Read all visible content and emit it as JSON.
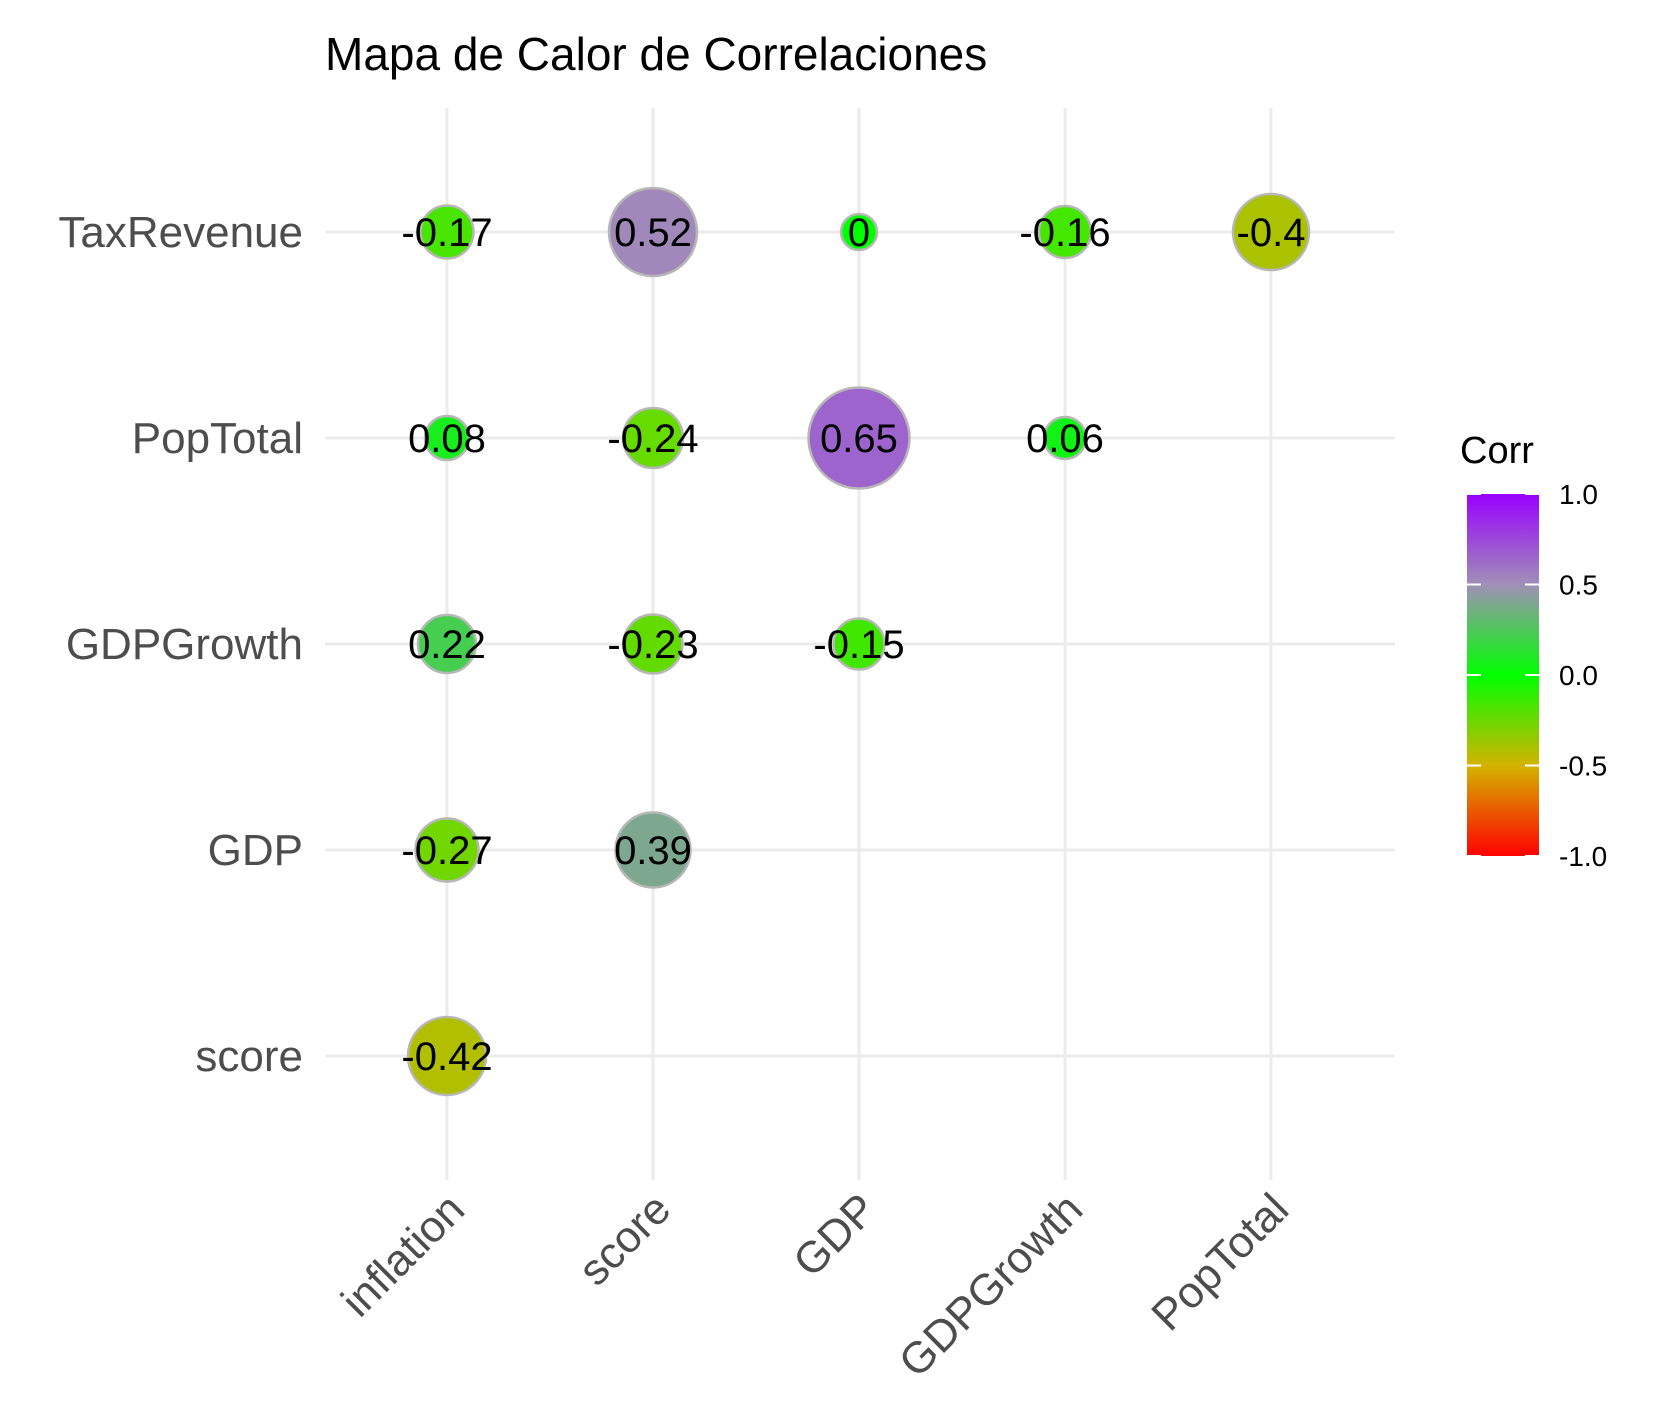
{
  "chart_data": {
    "type": "heatmap",
    "marker": "circle",
    "title": "Mapa de Calor de Correlaciones",
    "x_categories": [
      "inflation",
      "score",
      "GDP",
      "GDPGrowth",
      "PopTotal"
    ],
    "y_categories": [
      "score",
      "GDP",
      "GDPGrowth",
      "PopTotal",
      "TaxRevenue"
    ],
    "cells": [
      {
        "x": "inflation",
        "y": "score",
        "value": -0.42,
        "label": "-0.42"
      },
      {
        "x": "inflation",
        "y": "GDP",
        "value": -0.27,
        "label": "-0.27"
      },
      {
        "x": "score",
        "y": "GDP",
        "value": 0.39,
        "label": "0.39"
      },
      {
        "x": "inflation",
        "y": "GDPGrowth",
        "value": 0.22,
        "label": "0.22"
      },
      {
        "x": "score",
        "y": "GDPGrowth",
        "value": -0.23,
        "label": "-0.23"
      },
      {
        "x": "GDP",
        "y": "GDPGrowth",
        "value": -0.15,
        "label": "-0.15"
      },
      {
        "x": "inflation",
        "y": "PopTotal",
        "value": 0.08,
        "label": "0.08"
      },
      {
        "x": "score",
        "y": "PopTotal",
        "value": -0.24,
        "label": "-0.24"
      },
      {
        "x": "GDP",
        "y": "PopTotal",
        "value": 0.65,
        "label": "0.65"
      },
      {
        "x": "GDPGrowth",
        "y": "PopTotal",
        "value": 0.06,
        "label": "0.06"
      },
      {
        "x": "inflation",
        "y": "TaxRevenue",
        "value": -0.17,
        "label": "-0.17"
      },
      {
        "x": "score",
        "y": "TaxRevenue",
        "value": 0.52,
        "label": "0.52"
      },
      {
        "x": "GDP",
        "y": "TaxRevenue",
        "value": 0.0,
        "label": "0"
      },
      {
        "x": "GDPGrowth",
        "y": "TaxRevenue",
        "value": -0.16,
        "label": "-0.16"
      },
      {
        "x": "PopTotal",
        "y": "TaxRevenue",
        "value": -0.4,
        "label": "-0.4"
      }
    ],
    "legend": {
      "title": "Corr",
      "range": [
        -1.0,
        1.0
      ],
      "ticks": [
        {
          "value": 1.0,
          "label": "1.0"
        },
        {
          "value": 0.5,
          "label": "0.5"
        },
        {
          "value": 0.0,
          "label": "0.0"
        },
        {
          "value": -0.5,
          "label": "-0.5"
        },
        {
          "value": -1.0,
          "label": "-1.0"
        }
      ],
      "placement": "right"
    },
    "color_scale": [
      {
        "value": -1.0,
        "color": "#ff0000"
      },
      {
        "value": -0.5,
        "color": "#d4b300"
      },
      {
        "value": 0.0,
        "color": "#00ff00"
      },
      {
        "value": 0.5,
        "color": "#a08fb7"
      },
      {
        "value": 1.0,
        "color": "#9900ff"
      }
    ],
    "grid": true
  }
}
